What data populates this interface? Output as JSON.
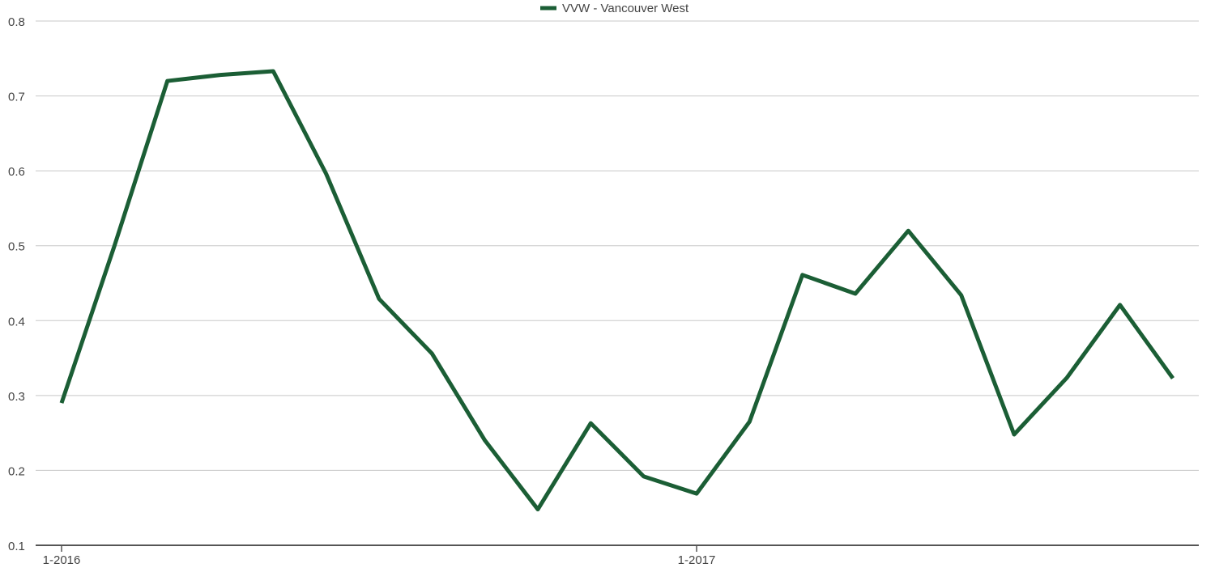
{
  "chart_data": {
    "type": "line",
    "categories": [
      "1-2016",
      null,
      null,
      null,
      null,
      null,
      null,
      null,
      null,
      null,
      null,
      null,
      "1-2017",
      null,
      null,
      null,
      null,
      null,
      null,
      null,
      null,
      null
    ],
    "series": [
      {
        "name": "VVW - Vancouver West",
        "color": "#1b5e35",
        "values": [
          0.29,
          0.5,
          0.72,
          0.728,
          0.733,
          0.596,
          0.429,
          0.356,
          0.24,
          0.148,
          0.263,
          0.192,
          0.169,
          0.265,
          0.461,
          0.436,
          0.52,
          0.434,
          0.248,
          0.324,
          0.421,
          0.323
        ]
      }
    ],
    "ylim": [
      0.1,
      0.8
    ],
    "yticks": [
      0.1,
      0.2,
      0.3,
      0.4,
      0.5,
      0.6,
      0.7,
      0.8
    ],
    "grid": true,
    "legend": "top"
  }
}
